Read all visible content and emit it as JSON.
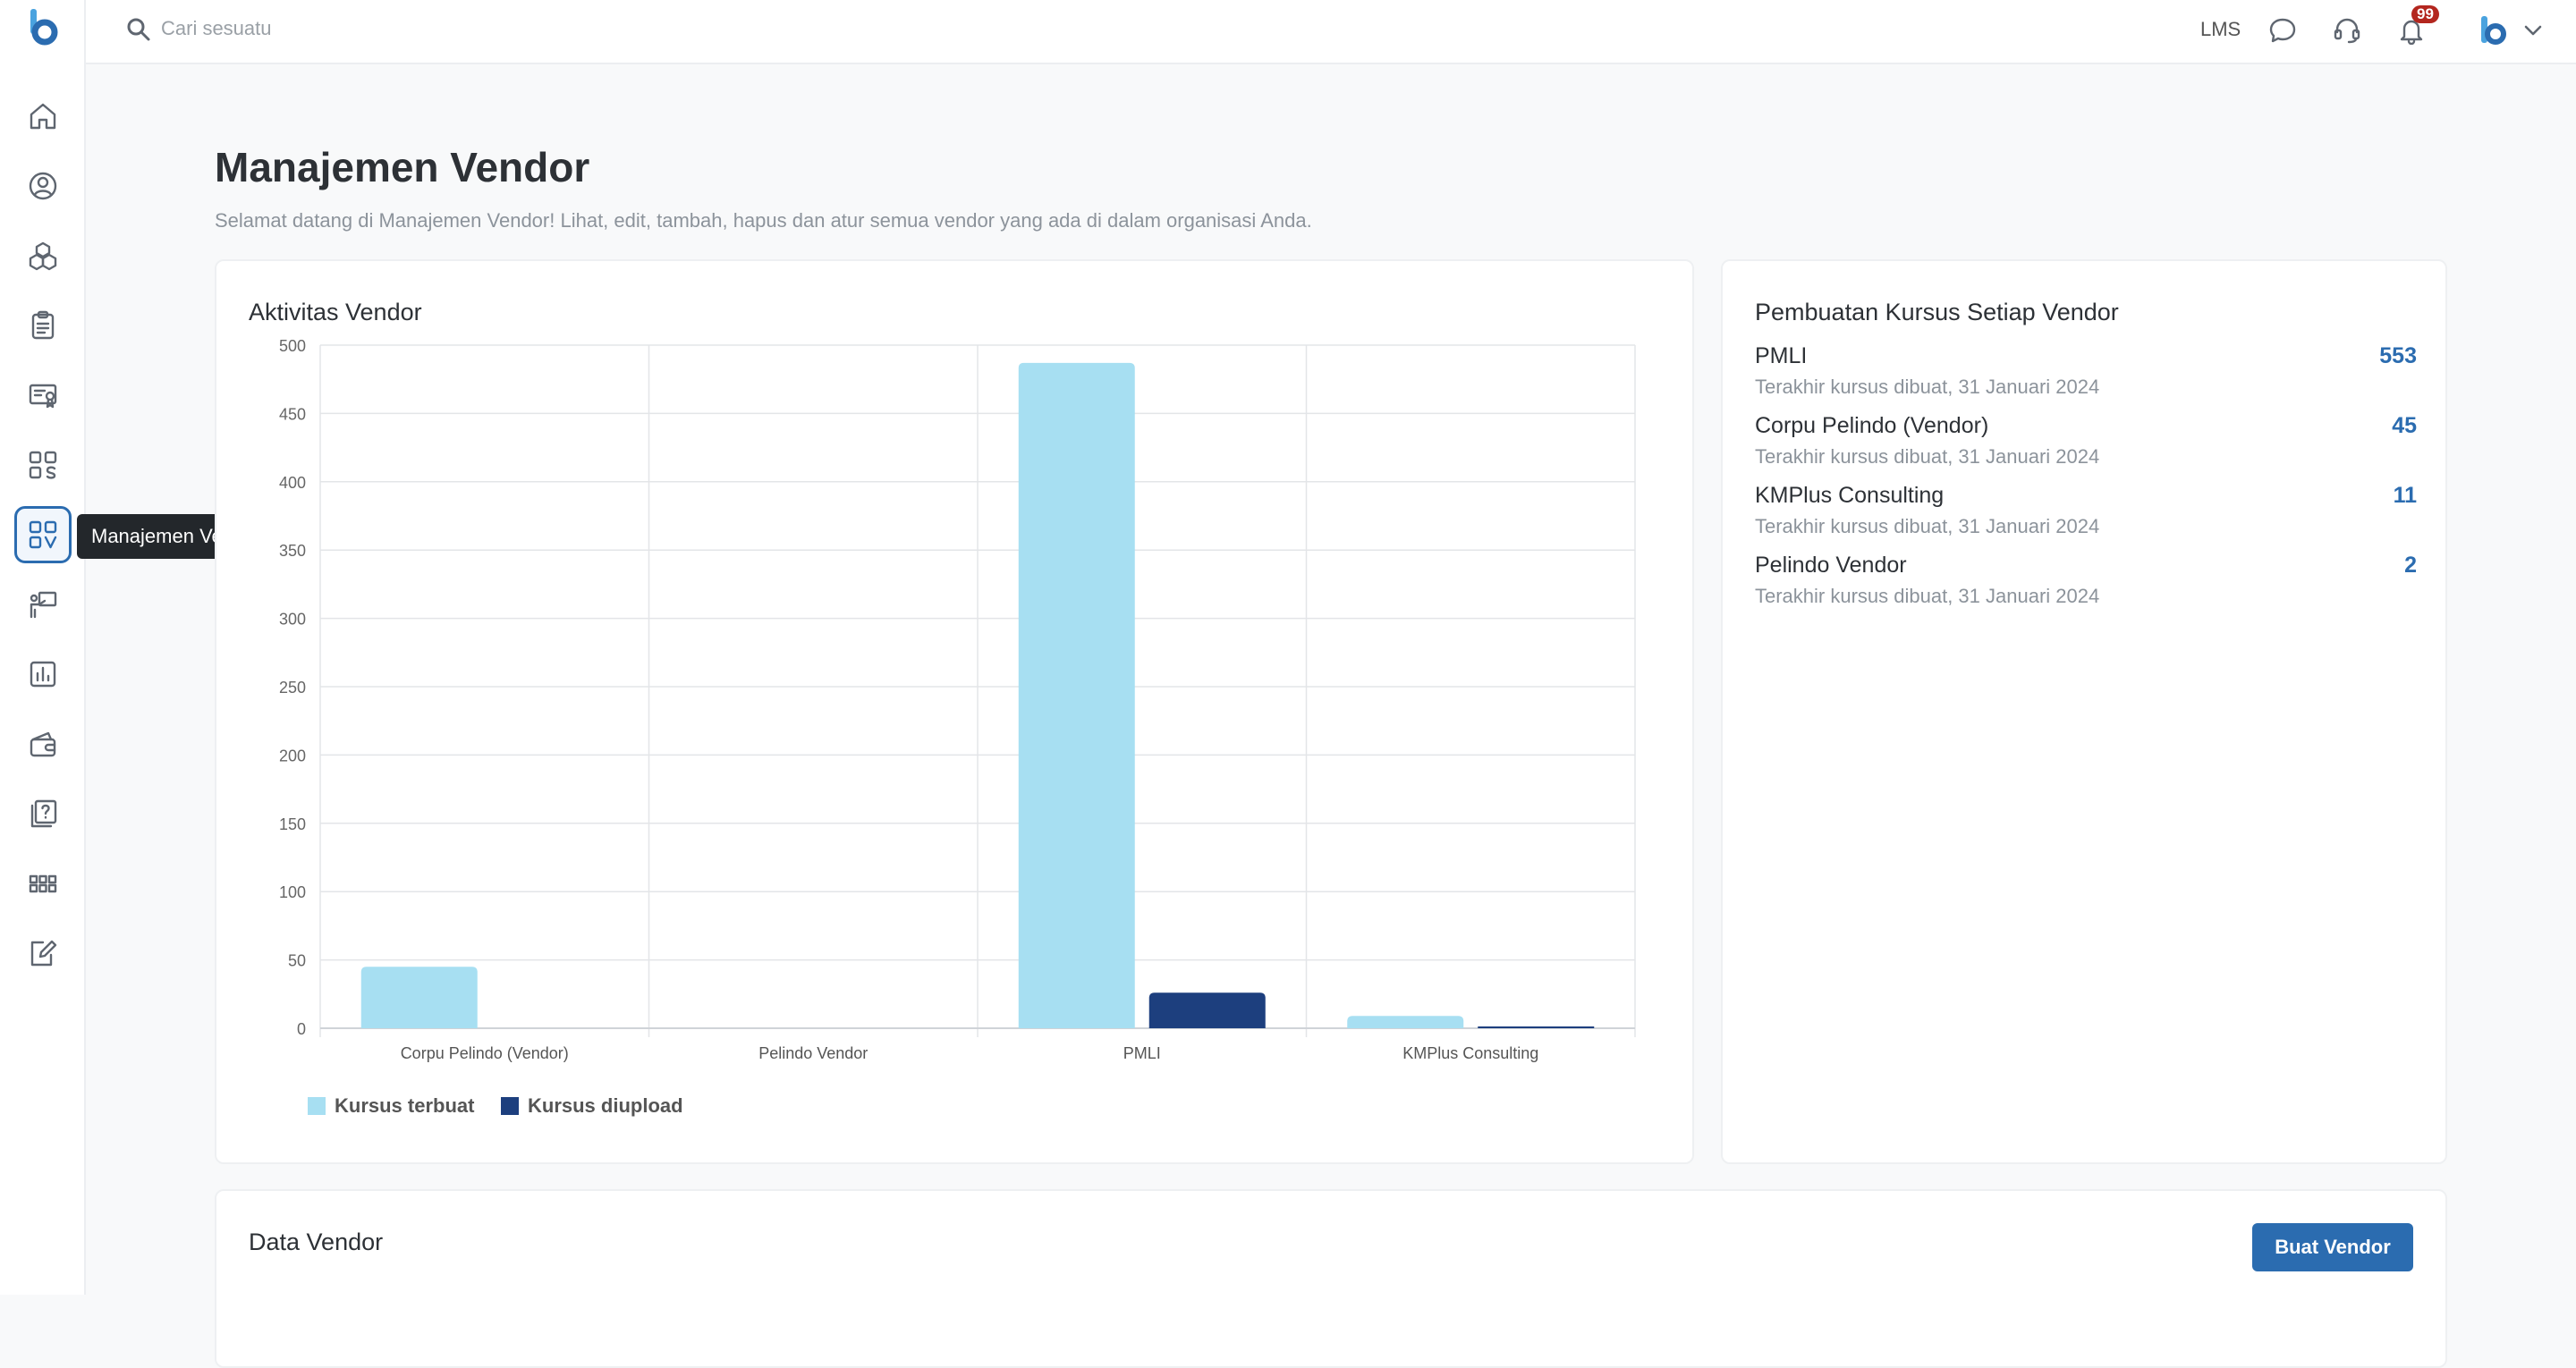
{
  "search": {
    "placeholder": "Cari sesuatu"
  },
  "topbar": {
    "lms_label": "LMS",
    "notification_count": "99"
  },
  "sidebar": {
    "items": [
      {
        "icon": "home-icon"
      },
      {
        "icon": "user-circle-icon"
      },
      {
        "icon": "boxes-icon"
      },
      {
        "icon": "clipboard-icon"
      },
      {
        "icon": "certificate-icon"
      },
      {
        "icon": "grid-s-icon"
      },
      {
        "icon": "grid-v-icon",
        "active": true
      },
      {
        "icon": "presenter-icon"
      },
      {
        "icon": "bar-chart-icon"
      },
      {
        "icon": "wallet-icon"
      },
      {
        "icon": "question-book-icon"
      },
      {
        "icon": "apps-icon"
      },
      {
        "icon": "edit-note-icon"
      }
    ],
    "tooltip": "Manajemen Vendor"
  },
  "page": {
    "title": "Manajemen Vendor",
    "subtitle": "Selamat datang di Manajemen Vendor! Lihat, edit, tambah, hapus dan atur semua vendor yang ada di dalam organisasi Anda."
  },
  "activity_card": {
    "title": "Aktivitas Vendor"
  },
  "chart_data": {
    "type": "bar",
    "categories": [
      "Corpu Pelindo (Vendor)",
      "Pelindo Vendor",
      "PMLI",
      "KMPlus Consulting"
    ],
    "series": [
      {
        "name": "Kursus terbuat",
        "values": [
          45,
          0,
          487,
          9
        ],
        "color": "#a7dff2"
      },
      {
        "name": "Kursus diupload",
        "values": [
          0,
          0,
          26,
          1
        ],
        "color": "#1d3f7e"
      }
    ],
    "ylim": [
      0,
      500
    ],
    "yticks": [
      0,
      50,
      100,
      150,
      200,
      250,
      300,
      350,
      400,
      450,
      500
    ],
    "grid": true,
    "legend": "bottom-left"
  },
  "summary_card": {
    "title": "Pembuatan Kursus Setiap Vendor",
    "vendors": [
      {
        "name": "PMLI",
        "sub": "Terakhir kursus dibuat, 31 Januari 2024",
        "count": "553"
      },
      {
        "name": "Corpu Pelindo (Vendor)",
        "sub": "Terakhir kursus dibuat, 31 Januari 2024",
        "count": "45"
      },
      {
        "name": "KMPlus Consulting",
        "sub": "Terakhir kursus dibuat, 31 Januari 2024",
        "count": "11"
      },
      {
        "name": "Pelindo Vendor",
        "sub": "Terakhir kursus dibuat, 31 Januari 2024",
        "count": "2"
      }
    ]
  },
  "data_card": {
    "title": "Data Vendor",
    "create_button": "Buat Vendor"
  },
  "colors": {
    "primary": "#2b6cb0",
    "badge": "#b3261e",
    "bar_light": "#a7dff2",
    "bar_dark": "#1d3f7e"
  }
}
